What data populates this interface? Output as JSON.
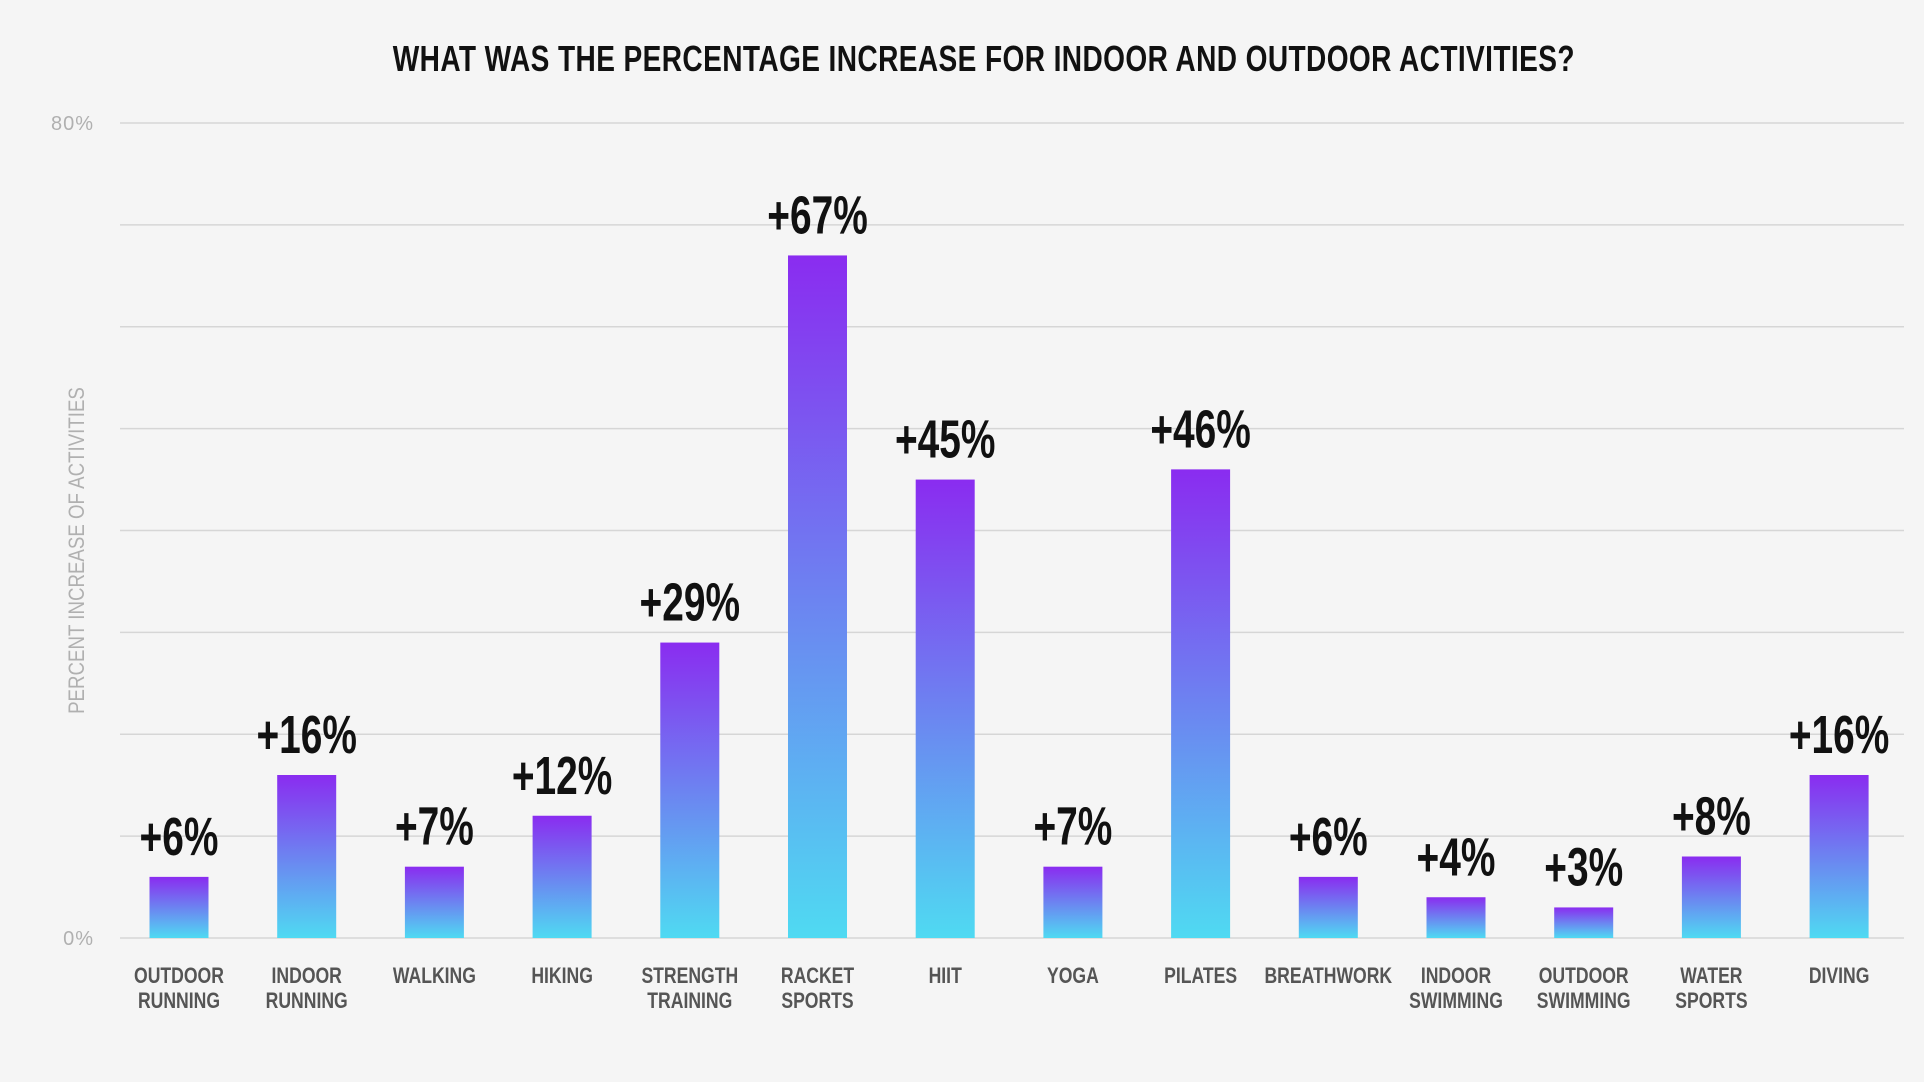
{
  "chart_data": {
    "type": "bar",
    "title": "WHAT WAS THE PERCENTAGE INCREASE FOR INDOOR AND OUTDOOR ACTIVITIES?",
    "xlabel": "",
    "ylabel": "PERCENT INCREASE OF ACTIVITIES",
    "ylim": [
      0,
      80
    ],
    "yticks": [
      {
        "value": 0,
        "label": "0%"
      },
      {
        "value": 80,
        "label": "80%"
      }
    ],
    "grid_step": 10,
    "grid": true,
    "categories": [
      [
        "OUTDOOR",
        "RUNNING"
      ],
      [
        "INDOOR",
        "RUNNING"
      ],
      [
        "WALKING"
      ],
      [
        "HIKING"
      ],
      [
        "STRENGTH",
        "TRAINING"
      ],
      [
        "RACKET",
        "SPORTS"
      ],
      [
        "HIIT"
      ],
      [
        "YOGA"
      ],
      [
        "PILATES"
      ],
      [
        "BREATHWORK"
      ],
      [
        "INDOOR",
        "SWIMMING"
      ],
      [
        "OUTDOOR",
        "SWIMMING"
      ],
      [
        "WATER",
        "SPORTS"
      ],
      [
        "DIVING"
      ]
    ],
    "values": [
      6,
      16,
      7,
      12,
      29,
      67,
      45,
      7,
      46,
      6,
      4,
      3,
      8,
      16
    ],
    "data_labels": [
      "+6%",
      "+16%",
      "+7%",
      "+12%",
      "+29%",
      "+67%",
      "+45%",
      "+7%",
      "+46%",
      "+6%",
      "+4%",
      "+3%",
      "+8%",
      "+16%"
    ],
    "colors": {
      "gradient_top": "#8a2cf0",
      "gradient_bottom": "#4fdaf2",
      "grid": "#d6d6d6",
      "axis_text": "#b0b0b0",
      "category_text": "#555555",
      "label_text": "#111111"
    }
  }
}
